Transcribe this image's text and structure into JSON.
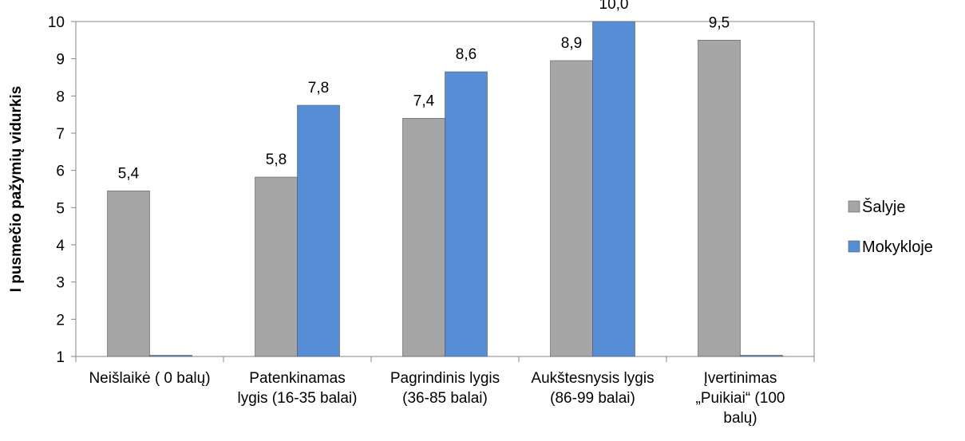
{
  "chart_data": {
    "type": "bar",
    "title": "",
    "xlabel": "",
    "ylabel": "I pusmečio pažymių vidurkis",
    "ylim": [
      1,
      10
    ],
    "yticks": [
      "1",
      "2",
      "3",
      "4",
      "5",
      "6",
      "7",
      "8",
      "9",
      "10"
    ],
    "grid": false,
    "legend_position": "right",
    "categories": [
      [
        "Neišlaikė ( 0 balų)"
      ],
      [
        "Patenkinamas",
        "lygis (16-35 balai)"
      ],
      [
        "Pagrindinis lygis",
        "(36-85 balai)"
      ],
      [
        "Aukštesnysis lygis",
        "(86-99 balai)"
      ],
      [
        "Įvertinimas",
        "„Puikiai“ (100",
        "balų)"
      ]
    ],
    "series": [
      {
        "name": "Šalyje",
        "color": "#a6a6a6",
        "values": [
          5.45,
          5.82,
          7.4,
          8.95,
          9.5
        ],
        "labels": [
          "5,4",
          "5,8",
          "7,4",
          "8,9",
          "9,5"
        ]
      },
      {
        "name": "Mokykloje",
        "color": "#558ed5",
        "values": [
          1,
          7.75,
          8.65,
          10.0,
          1
        ],
        "labels": [
          "",
          "7,8",
          "8,6",
          "10,0",
          ""
        ]
      }
    ]
  }
}
